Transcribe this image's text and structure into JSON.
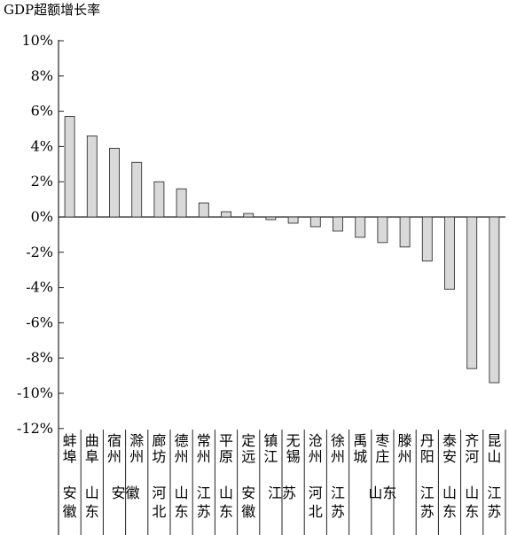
{
  "chart_data": {
    "type": "bar",
    "title": "",
    "ylabel": "GDP超额增长率",
    "xlabel": "",
    "ylim": [
      -12,
      10
    ],
    "y_ticks": [
      "10%",
      "8%",
      "6%",
      "4%",
      "2%",
      "0%",
      "-2%",
      "-4%",
      "-6%",
      "-8%",
      "-10%",
      "-12%"
    ],
    "y_tick_values": [
      10,
      8,
      6,
      4,
      2,
      0,
      -2,
      -4,
      -6,
      -8,
      -10,
      -12
    ],
    "bar_color": "#d9d9d9",
    "categories": [
      "蚌埠",
      "曲阜",
      "宿州",
      "滁州",
      "廊坊",
      "德州",
      "常州",
      "平原",
      "定远",
      "镇江",
      "无锡",
      "沧州",
      "徐州",
      "禹城",
      "枣庄",
      "滕州",
      "丹阳",
      "泰安",
      "齐河",
      "昆山"
    ],
    "values": [
      5.7,
      4.6,
      3.9,
      3.1,
      2.0,
      1.6,
      0.8,
      0.3,
      0.2,
      -0.15,
      -0.35,
      -0.55,
      -0.8,
      -1.15,
      -1.45,
      -1.7,
      -2.5,
      -4.1,
      -8.6,
      -9.4
    ],
    "provinces": [
      {
        "name": "安徽",
        "from": 0,
        "to": 0
      },
      {
        "name": "山东",
        "from": 1,
        "to": 1
      },
      {
        "name": "安徽",
        "from": 2,
        "to": 3
      },
      {
        "name": "河北",
        "from": 4,
        "to": 4
      },
      {
        "name": "山东",
        "from": 5,
        "to": 5
      },
      {
        "name": "江苏",
        "from": 6,
        "to": 6
      },
      {
        "name": "山东",
        "from": 7,
        "to": 7
      },
      {
        "name": "安徽",
        "from": 8,
        "to": 8
      },
      {
        "name": "江苏",
        "from": 9,
        "to": 10
      },
      {
        "name": "河北",
        "from": 11,
        "to": 11
      },
      {
        "name": "江苏",
        "from": 12,
        "to": 12
      },
      {
        "name": "山东",
        "from": 13,
        "to": 15
      },
      {
        "name": "江苏",
        "from": 16,
        "to": 16
      },
      {
        "name": "山东",
        "from": 17,
        "to": 17
      },
      {
        "name": "山东",
        "from": 18,
        "to": 18
      },
      {
        "name": "江苏",
        "from": 19,
        "to": 19
      }
    ]
  }
}
